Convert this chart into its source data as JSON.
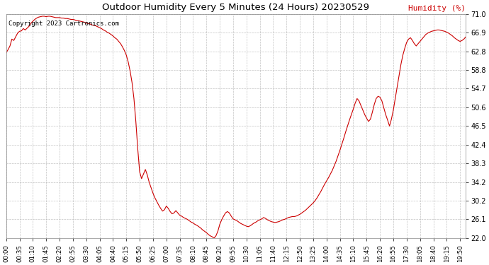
{
  "title": "Outdoor Humidity Every 5 Minutes (24 Hours) 20230529",
  "ylabel": "Humidity (%)",
  "copyright": "Copyright 2023 Cartronics.com",
  "line_color": "#cc0000",
  "bg_color": "#ffffff",
  "grid_color": "#aaaaaa",
  "ylim": [
    22.0,
    71.0
  ],
  "yticks": [
    22.0,
    26.1,
    30.2,
    34.2,
    38.3,
    42.4,
    46.5,
    50.6,
    54.7,
    58.8,
    62.8,
    66.9,
    71.0
  ],
  "xtick_step": 7,
  "humidity_values": [
    62.5,
    63.2,
    64.0,
    65.5,
    65.2,
    66.0,
    66.8,
    67.2,
    67.3,
    67.8,
    67.5,
    67.9,
    68.3,
    69.0,
    69.4,
    69.8,
    70.1,
    70.3,
    70.4,
    70.5,
    70.5,
    70.4,
    70.5,
    70.5,
    70.4,
    70.3,
    70.2,
    70.2,
    70.2,
    70.1,
    70.1,
    70.0,
    70.0,
    69.9,
    69.8,
    69.8,
    69.7,
    69.5,
    69.5,
    69.4,
    69.3,
    69.2,
    69.0,
    68.9,
    68.8,
    68.6,
    68.5,
    68.4,
    68.2,
    68.0,
    67.8,
    67.5,
    67.3,
    67.0,
    66.8,
    66.5,
    66.2,
    65.8,
    65.5,
    65.0,
    64.5,
    63.8,
    63.0,
    62.0,
    60.5,
    58.5,
    56.0,
    52.5,
    47.5,
    41.5,
    36.5,
    35.0,
    36.0,
    37.0,
    35.8,
    34.2,
    33.0,
    31.8,
    30.8,
    30.0,
    29.2,
    28.5,
    27.9,
    28.2,
    29.0,
    28.5,
    27.8,
    27.3,
    27.5,
    28.0,
    27.5,
    27.0,
    26.8,
    26.5,
    26.3,
    26.1,
    25.8,
    25.5,
    25.3,
    25.0,
    24.8,
    24.5,
    24.2,
    23.8,
    23.5,
    23.2,
    22.8,
    22.5,
    22.3,
    22.0,
    22.5,
    23.5,
    25.0,
    26.0,
    26.8,
    27.5,
    27.8,
    27.5,
    26.8,
    26.2,
    26.0,
    25.8,
    25.5,
    25.2,
    25.0,
    24.8,
    24.6,
    24.5,
    24.7,
    25.0,
    25.3,
    25.5,
    25.8,
    26.0,
    26.2,
    26.5,
    26.3,
    26.0,
    25.8,
    25.6,
    25.5,
    25.4,
    25.5,
    25.6,
    25.8,
    26.0,
    26.1,
    26.3,
    26.5,
    26.6,
    26.7,
    26.7,
    26.8,
    27.0,
    27.2,
    27.5,
    27.8,
    28.1,
    28.5,
    28.9,
    29.3,
    29.7,
    30.2,
    30.8,
    31.5,
    32.2,
    33.0,
    33.8,
    34.5,
    35.2,
    36.0,
    36.8,
    37.8,
    38.8,
    40.0,
    41.2,
    42.5,
    43.8,
    45.2,
    46.5,
    47.8,
    49.0,
    50.2,
    51.5,
    52.5,
    52.0,
    51.0,
    50.0,
    49.0,
    48.2,
    47.5,
    48.0,
    49.5,
    51.2,
    52.5,
    53.0,
    52.8,
    52.0,
    50.5,
    49.0,
    47.8,
    46.5,
    48.0,
    50.0,
    52.5,
    55.0,
    57.5,
    60.0,
    62.0,
    63.5,
    64.8,
    65.5,
    65.8,
    65.2,
    64.5,
    64.0,
    64.5,
    65.0,
    65.5,
    66.0,
    66.5,
    66.8,
    67.0,
    67.2,
    67.3,
    67.4,
    67.5,
    67.5,
    67.4,
    67.3,
    67.2,
    67.0,
    66.8,
    66.5,
    66.2,
    65.8,
    65.5,
    65.2,
    65.0,
    65.2,
    65.5,
    66.0
  ]
}
